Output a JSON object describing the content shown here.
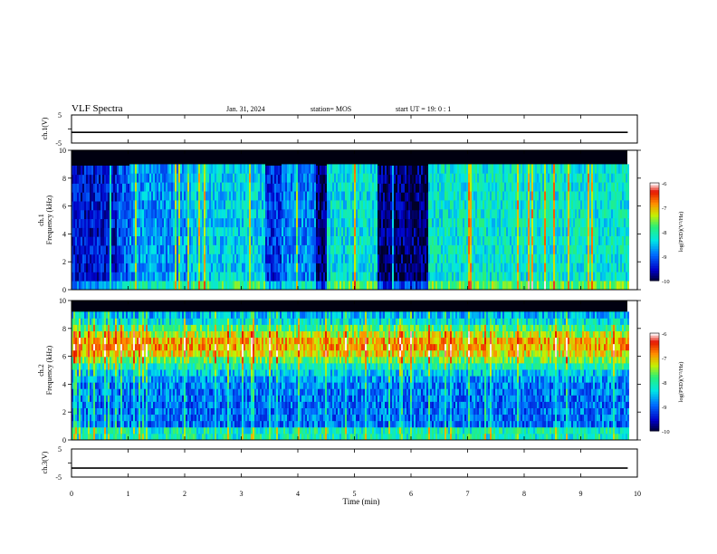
{
  "header": {
    "title": "VLF Spectra",
    "date": "Jan. 31, 2024",
    "station": "station= MOS",
    "start": "start UT = 19: 0 : 1"
  },
  "chart_data": [
    {
      "type": "line",
      "id": "ch1v",
      "ylabel": "ch.1(V)",
      "ylim": [
        -5,
        5
      ],
      "yticks": [
        "5",
        "-5"
      ],
      "series": [
        {
          "values": [
            -1.2,
            -1.2,
            -1.2,
            -1.2,
            -1.2,
            -1.2,
            -1.2,
            -1.2,
            -1.2,
            -1.2
          ]
        }
      ]
    },
    {
      "type": "heatmap",
      "id": "ch1spec",
      "ylabel": "ch.1",
      "ylabel2": "Frequency (kHz)",
      "ylim": [
        0,
        10
      ],
      "yticks": [
        "0",
        "2",
        "4",
        "6",
        "8",
        "10"
      ],
      "xlim": [
        0,
        9.83
      ],
      "colorbar": {
        "label": "log(PSD)(V²/Hz)",
        "ticks": [
          "-6",
          "-7",
          "-8",
          "-9",
          "-10"
        ],
        "range": [
          -10,
          -6
        ]
      },
      "segments": [
        {
          "x": [
            0.0,
            0.8
          ],
          "level": -9.4,
          "upper": 8.9
        },
        {
          "x": [
            0.8,
            1.0
          ],
          "level": -9.0,
          "upper": 8.9
        },
        {
          "x": [
            1.0,
            2.1
          ],
          "level": -8.7,
          "upper": 9.0
        },
        {
          "x": [
            2.1,
            3.4
          ],
          "level": -8.4,
          "upper": 9.0
        },
        {
          "x": [
            3.4,
            3.7
          ],
          "level": -9.2,
          "upper": 8.9
        },
        {
          "x": [
            3.7,
            4.3
          ],
          "level": -8.8,
          "upper": 9.0
        },
        {
          "x": [
            4.3,
            4.5
          ],
          "level": -9.8,
          "upper": 8.9
        },
        {
          "x": [
            4.5,
            5.4
          ],
          "level": -8.3,
          "upper": 9.0
        },
        {
          "x": [
            5.4,
            6.3
          ],
          "level": -9.8,
          "upper": 8.9
        },
        {
          "x": [
            6.3,
            9.83
          ],
          "level": -8.2,
          "upper": 9.0
        }
      ]
    },
    {
      "type": "heatmap",
      "id": "ch2spec",
      "ylabel": "ch.2",
      "ylabel2": "Frequency (kHz)",
      "ylim": [
        0,
        10
      ],
      "yticks": [
        "0",
        "2",
        "4",
        "6",
        "8",
        "10"
      ],
      "xlim": [
        0,
        9.83
      ],
      "colorbar": {
        "label": "log(PSD)(V²/Hz)",
        "ticks": [
          "-6",
          "-7",
          "-8",
          "-9",
          "-10"
        ],
        "range": [
          -10,
          -6
        ]
      },
      "band": {
        "center_khz": 6.8,
        "width_khz": 2.4,
        "level": -6.9
      },
      "background_level": -8.9,
      "upper": 9.2
    },
    {
      "type": "line",
      "id": "ch3v",
      "ylabel": "ch.3(V)",
      "ylim": [
        -5,
        5
      ],
      "yticks": [
        "5",
        "-5"
      ],
      "xlabel": "Time (min)",
      "xlim": [
        0,
        10
      ],
      "xticks": [
        "0",
        "1",
        "2",
        "3",
        "4",
        "5",
        "6",
        "7",
        "8",
        "9",
        "10"
      ],
      "series": [
        {
          "values": [
            -1.8,
            -1.8,
            -1.8,
            -1.8,
            -1.8,
            -1.8,
            -1.8,
            -1.8,
            -1.8,
            -1.8
          ]
        }
      ]
    }
  ]
}
